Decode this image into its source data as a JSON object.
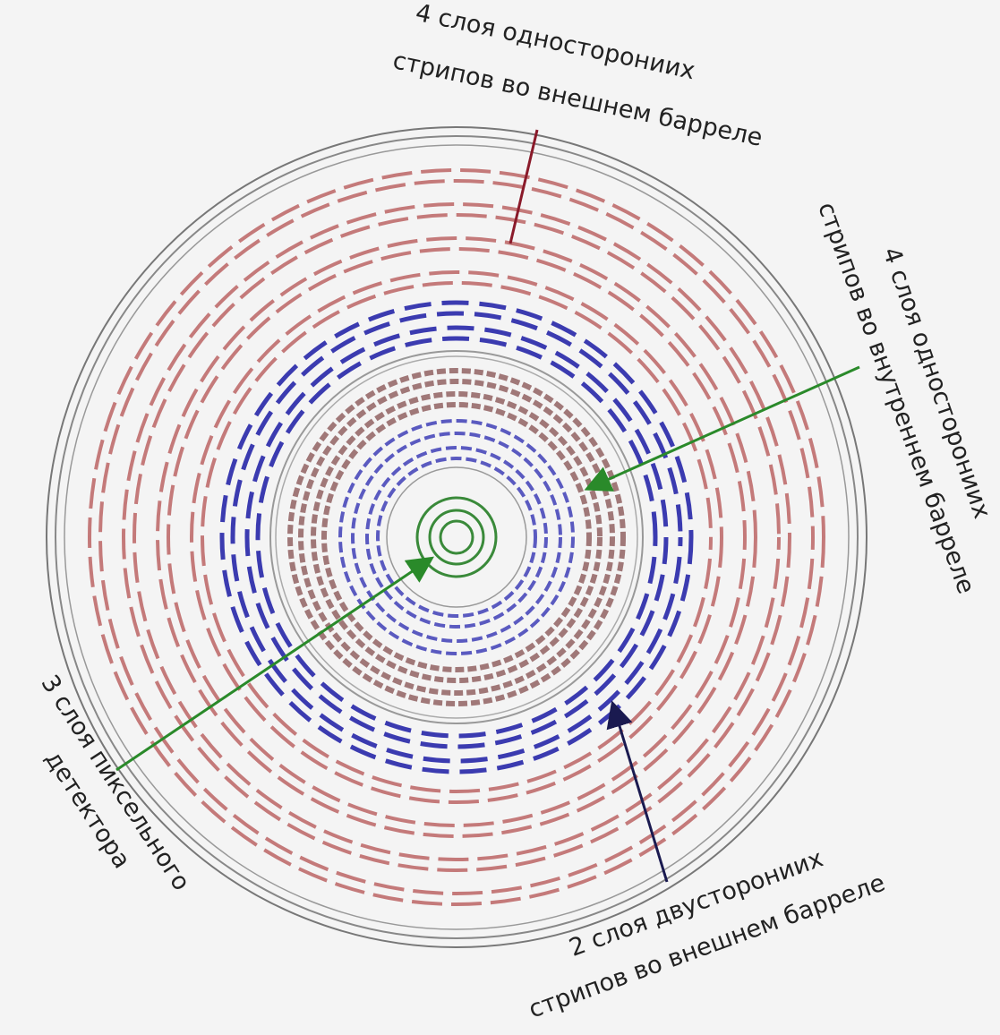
{
  "labels": {
    "outer_single": {
      "lines": [
        "4 слоя односторониих",
        "стрипов во внешнем барреле"
      ]
    },
    "inner_single": {
      "lines": [
        "4 слоя односторониих",
        "стрипов во внутреннем барреле"
      ]
    },
    "pixel": {
      "lines": [
        "3 слоя пиксельного",
        "детектора"
      ]
    },
    "outer_double": {
      "lines": [
        "2 слоя двусторониих",
        "стрипов во внешнем барреле"
      ]
    }
  }
}
